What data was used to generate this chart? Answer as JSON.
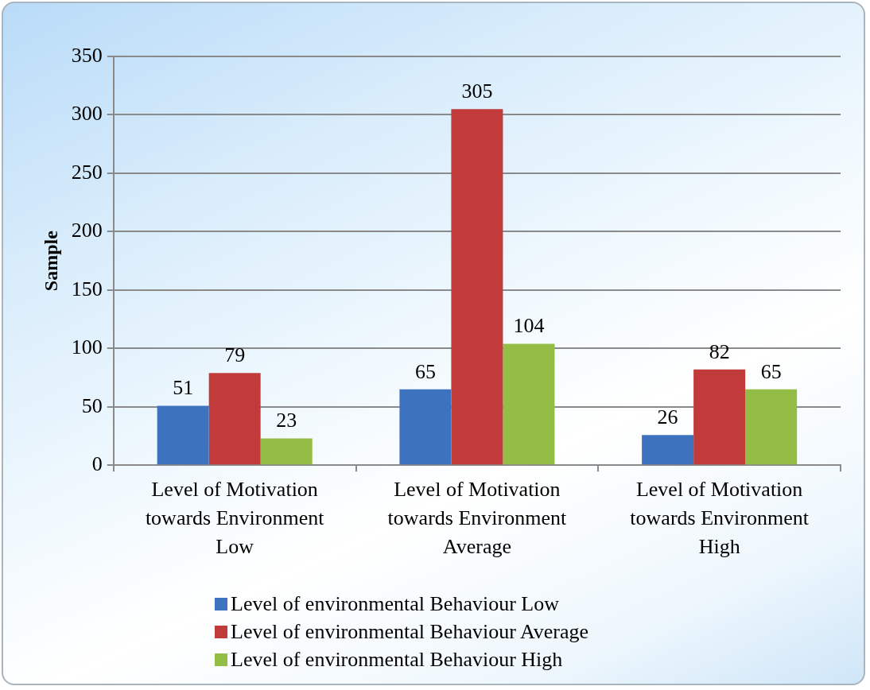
{
  "chart_data": {
    "type": "bar",
    "categories": [
      "Level of Motivation towards Environment Low",
      "Level of Motivation towards Environment Average",
      "Level of Motivation towards Environment High"
    ],
    "series": [
      {
        "name": "Level of environmental Behaviour Low",
        "color": "#3d72bf",
        "values": [
          51,
          65,
          26
        ]
      },
      {
        "name": "Level of environmental Behaviour Average",
        "color": "#c23b3b",
        "values": [
          79,
          305,
          82
        ]
      },
      {
        "name": "Level of environmental Behaviour High",
        "color": "#94bd46",
        "values": [
          23,
          104,
          65
        ]
      }
    ],
    "ylabel": "Sample",
    "ylim": [
      0,
      350
    ],
    "yticks": [
      0,
      50,
      100,
      150,
      200,
      250,
      300,
      350
    ],
    "grid": "y",
    "legend": "bottom",
    "data_labels": true
  }
}
